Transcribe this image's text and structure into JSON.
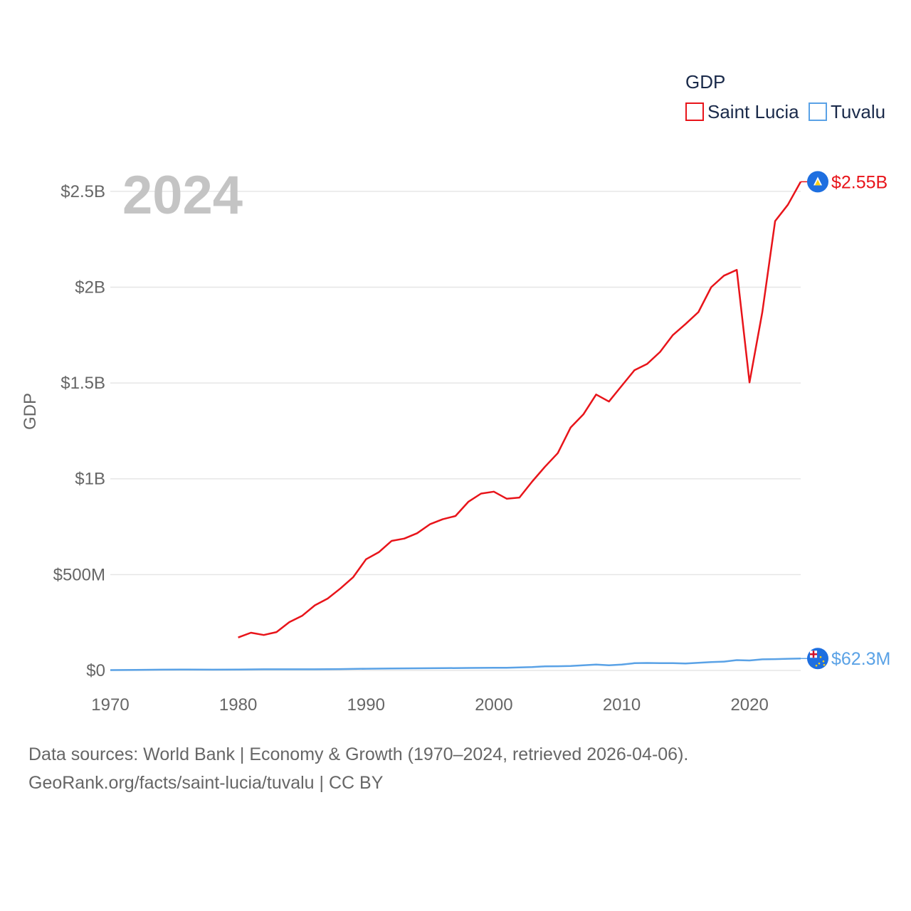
{
  "chart_data": {
    "type": "line",
    "title": "",
    "ylabel": "GDP",
    "xlabel": "",
    "year_label": "2024",
    "legend": {
      "title": "GDP",
      "placement": "top-right"
    },
    "xlim": [
      1970,
      2024
    ],
    "ylim": [
      0,
      2700000000
    ],
    "x_ticks": [
      {
        "value": 1970,
        "label": "1970"
      },
      {
        "value": 1980,
        "label": "1980"
      },
      {
        "value": 1990,
        "label": "1990"
      },
      {
        "value": 2000,
        "label": "2000"
      },
      {
        "value": 2010,
        "label": "2010"
      },
      {
        "value": 2020,
        "label": "2020"
      }
    ],
    "y_ticks": [
      {
        "value": 0,
        "label": "$0"
      },
      {
        "value": 500000000,
        "label": "$500M"
      },
      {
        "value": 1000000000,
        "label": "$1B"
      },
      {
        "value": 1500000000,
        "label": "$1.5B"
      },
      {
        "value": 2000000000,
        "label": "$2B"
      },
      {
        "value": 2500000000,
        "label": "$2.5B"
      }
    ],
    "series": [
      {
        "name": "Saint Lucia",
        "color": "#e8141a",
        "end_label": "$2.55B",
        "marker_color": "#1e6fe0",
        "icon": "saint-lucia-flag-icon",
        "x": [
          1980,
          1981,
          1982,
          1983,
          1984,
          1985,
          1986,
          1987,
          1988,
          1989,
          1990,
          1991,
          1992,
          1993,
          1994,
          1995,
          1996,
          1997,
          1998,
          1999,
          2000,
          2001,
          2002,
          2003,
          2004,
          2005,
          2006,
          2007,
          2008,
          2009,
          2010,
          2011,
          2012,
          2013,
          2014,
          2015,
          2016,
          2017,
          2018,
          2019,
          2020,
          2021,
          2022,
          2023,
          2024
        ],
        "values": [
          172000000,
          197000000,
          185000000,
          200000000,
          252000000,
          285000000,
          340000000,
          375000000,
          428000000,
          487000000,
          580000000,
          617000000,
          676000000,
          688000000,
          716000000,
          763000000,
          789000000,
          806000000,
          880000000,
          923000000,
          933000000,
          896000000,
          902000000,
          986000000,
          1063000000,
          1134000000,
          1267000000,
          1336000000,
          1440000000,
          1403000000,
          1485000000,
          1567000000,
          1600000000,
          1662000000,
          1750000000,
          1808000000,
          1870000000,
          2000000000,
          2060000000,
          2090000000,
          1503000000,
          1870000000,
          2345000000,
          2430000000,
          2550000000
        ]
      },
      {
        "name": "Tuvalu",
        "color": "#5aa2e6",
        "end_label": "$62.3M",
        "marker_color": "#1e6fe0",
        "icon": "tuvalu-flag-icon",
        "x": [
          1970,
          1972,
          1974,
          1976,
          1978,
          1980,
          1982,
          1984,
          1986,
          1988,
          1990,
          1992,
          1994,
          1996,
          1998,
          2000,
          2001,
          2002,
          2003,
          2004,
          2005,
          2006,
          2007,
          2008,
          2009,
          2010,
          2011,
          2012,
          2013,
          2014,
          2015,
          2016,
          2017,
          2018,
          2019,
          2020,
          2021,
          2022,
          2023,
          2024
        ],
        "values": [
          2000000,
          3000000,
          4000000,
          5000000,
          4000000,
          5000000,
          6000000,
          6000000,
          6000000,
          7000000,
          9000000,
          10000000,
          11000000,
          12000000,
          13000000,
          14000000,
          14000000,
          16000000,
          18000000,
          21000000,
          22000000,
          23000000,
          27000000,
          31000000,
          27000000,
          31000000,
          38000000,
          39000000,
          38000000,
          38000000,
          36000000,
          40000000,
          44000000,
          46000000,
          54000000,
          52000000,
          58000000,
          59000000,
          61000000,
          62300000
        ]
      }
    ]
  },
  "footer": {
    "line1": "Data sources: World Bank | Economy & Growth (1970–2024, retrieved 2026-04-06).",
    "line2": "GeoRank.org/facts/saint-lucia/tuvalu | CC BY"
  }
}
